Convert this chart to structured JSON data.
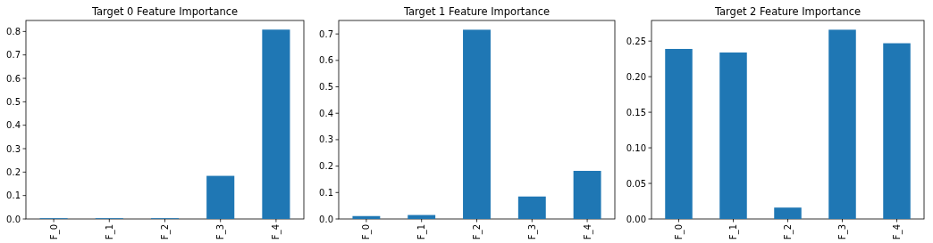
{
  "chart_data": [
    {
      "type": "bar",
      "title": "Target 0 Feature Importance",
      "categories": [
        "F_0",
        "F_1",
        "F_2",
        "F_3",
        "F_4"
      ],
      "values": [
        0.003,
        0.003,
        0.003,
        0.184,
        0.808
      ],
      "color": "#1f77b4",
      "ylim": [
        0,
        0.847
      ],
      "yticks": [
        {
          "value": 0,
          "label": "0.0"
        },
        {
          "value": 0.1,
          "label": "0.1"
        },
        {
          "value": 0.2,
          "label": "0.2"
        },
        {
          "value": 0.3,
          "label": "0.3"
        },
        {
          "value": 0.4,
          "label": "0.4"
        },
        {
          "value": 0.5,
          "label": "0.5"
        },
        {
          "value": 0.6,
          "label": "0.6"
        },
        {
          "value": 0.7,
          "label": "0.7"
        },
        {
          "value": 0.8,
          "label": "0.8"
        }
      ]
    },
    {
      "type": "bar",
      "title": "Target 1 Feature Importance",
      "categories": [
        "F_0",
        "F_1",
        "F_2",
        "F_3",
        "F_4"
      ],
      "values": [
        0.011,
        0.015,
        0.716,
        0.085,
        0.182
      ],
      "color": "#1f77b4",
      "ylim": [
        0,
        0.751
      ],
      "yticks": [
        {
          "value": 0,
          "label": "0.0"
        },
        {
          "value": 0.1,
          "label": "0.1"
        },
        {
          "value": 0.2,
          "label": "0.2"
        },
        {
          "value": 0.3,
          "label": "0.3"
        },
        {
          "value": 0.4,
          "label": "0.4"
        },
        {
          "value": 0.5,
          "label": "0.5"
        },
        {
          "value": 0.6,
          "label": "0.6"
        },
        {
          "value": 0.7,
          "label": "0.7"
        }
      ]
    },
    {
      "type": "bar",
      "title": "Target 2 Feature Importance",
      "categories": [
        "F_0",
        "F_1",
        "F_2",
        "F_3",
        "F_4"
      ],
      "values": [
        0.239,
        0.234,
        0.016,
        0.266,
        0.247
      ],
      "color": "#1f77b4",
      "ylim": [
        0,
        0.279
      ],
      "yticks": [
        {
          "value": 0,
          "label": "0.00"
        },
        {
          "value": 0.05,
          "label": "0.05"
        },
        {
          "value": 0.1,
          "label": "0.10"
        },
        {
          "value": 0.15,
          "label": "0.15"
        },
        {
          "value": 0.2,
          "label": "0.20"
        },
        {
          "value": 0.25,
          "label": "0.25"
        }
      ]
    }
  ]
}
